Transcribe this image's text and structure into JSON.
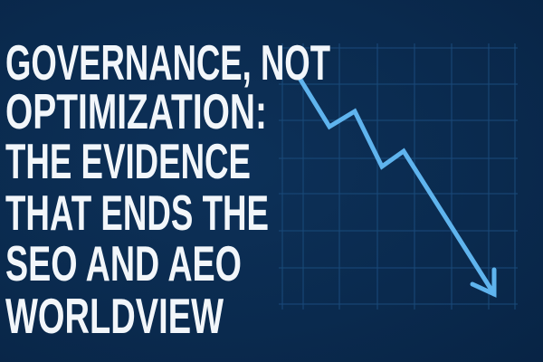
{
  "headline": {
    "lines": [
      "GOVERNANCE, NOT",
      "OPTIMIZATION:",
      "THE EVIDENCE",
      "THAT ENDS THE",
      "SEO AND AEO",
      "WORLDVIEW"
    ]
  },
  "graphic": {
    "type": "declining-line-arrow-on-grid",
    "trend": "down",
    "line_color": "#5fb4ee",
    "grid_color": "#1a4a7a",
    "background_color": "#0b2b50",
    "text_color": "#f2f6fa"
  }
}
